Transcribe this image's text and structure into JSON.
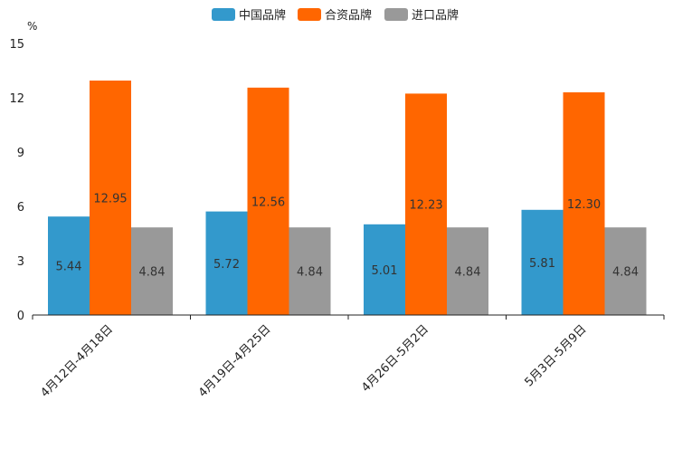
{
  "chart_data": {
    "type": "bar",
    "unit_label": "%",
    "ylim": [
      0,
      15
    ],
    "yticks": [
      0,
      3,
      6,
      9,
      12,
      15
    ],
    "categories": [
      "4月12日-4月18日",
      "4月19日-4月25日",
      "4月26日-5月2日",
      "5月3日-5月9日"
    ],
    "series": [
      {
        "name": "中国品牌",
        "color": "#3399cc",
        "values": [
          5.44,
          5.72,
          5.01,
          5.81
        ],
        "labels": [
          "5.44",
          "5.72",
          "5.01",
          "5.81"
        ]
      },
      {
        "name": "合资品牌",
        "color": "#ff6600",
        "values": [
          12.95,
          12.56,
          12.23,
          12.3
        ],
        "labels": [
          "12.95",
          "12.56",
          "12.23",
          "12.30"
        ]
      },
      {
        "name": "进口品牌",
        "color": "#999999",
        "values": [
          4.84,
          4.84,
          4.84,
          4.84
        ],
        "labels": [
          "4.84",
          "4.84",
          "4.84",
          "4.84"
        ]
      }
    ]
  }
}
